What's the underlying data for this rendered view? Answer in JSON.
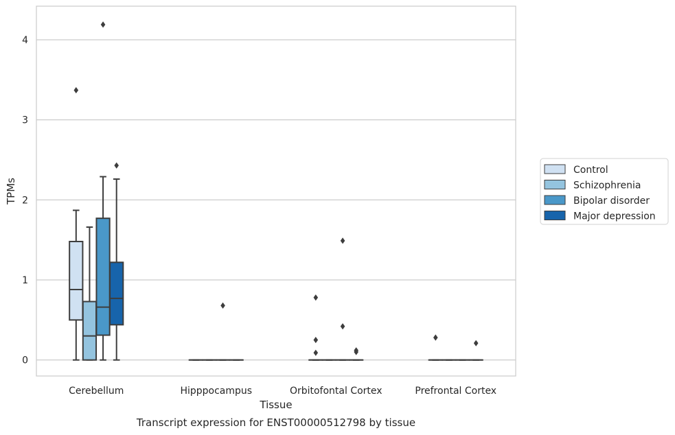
{
  "chart_data": {
    "type": "box",
    "title": "Transcript expression for ENST00000512798 by tissue",
    "xlabel": "Tissue",
    "ylabel": "TPMs",
    "ylim": [
      -0.2,
      4.42
    ],
    "yticks": [
      0,
      1,
      2,
      3,
      4
    ],
    "grid": "horizontal",
    "legend_position": "right",
    "categories": [
      "Cerebellum",
      "Hipppocampus",
      "Orbitofontal Cortex",
      "Prefrontal Cortex"
    ],
    "series": [
      {
        "name": "Control",
        "color": "#d0e1f2",
        "boxes": [
          {
            "whisker_low": 0,
            "q1": 0.5,
            "median": 0.88,
            "q3": 1.48,
            "whisker_high": 1.87,
            "outliers": [
              3.37
            ]
          },
          {
            "whisker_low": 0,
            "q1": 0,
            "median": 0,
            "q3": 0,
            "whisker_high": 0,
            "outliers": []
          },
          {
            "whisker_low": 0,
            "q1": 0,
            "median": 0,
            "q3": 0,
            "whisker_high": 0,
            "outliers": [
              0.78,
              0.25,
              0.09
            ]
          },
          {
            "whisker_low": 0,
            "q1": 0,
            "median": 0,
            "q3": 0,
            "whisker_high": 0,
            "outliers": [
              0.28
            ]
          }
        ]
      },
      {
        "name": "Schizophrenia",
        "color": "#94c4df",
        "boxes": [
          {
            "whisker_low": 0,
            "q1": 0,
            "median": 0.3,
            "q3": 0.73,
            "whisker_high": 1.66,
            "outliers": []
          },
          {
            "whisker_low": 0,
            "q1": 0,
            "median": 0,
            "q3": 0,
            "whisker_high": 0,
            "outliers": []
          },
          {
            "whisker_low": 0,
            "q1": 0,
            "median": 0,
            "q3": 0,
            "whisker_high": 0,
            "outliers": []
          },
          {
            "whisker_low": 0,
            "q1": 0,
            "median": 0,
            "q3": 0,
            "whisker_high": 0,
            "outliers": []
          }
        ]
      },
      {
        "name": "Bipolar disorder",
        "color": "#4a98c9",
        "boxes": [
          {
            "whisker_low": 0,
            "q1": 0.31,
            "median": 0.66,
            "q3": 1.77,
            "whisker_high": 2.29,
            "outliers": [
              4.19
            ]
          },
          {
            "whisker_low": 0,
            "q1": 0,
            "median": 0,
            "q3": 0,
            "whisker_high": 0,
            "outliers": [
              0.68
            ]
          },
          {
            "whisker_low": 0,
            "q1": 0,
            "median": 0,
            "q3": 0,
            "whisker_high": 0,
            "outliers": [
              1.49,
              0.42
            ]
          },
          {
            "whisker_low": 0,
            "q1": 0,
            "median": 0,
            "q3": 0,
            "whisker_high": 0,
            "outliers": []
          }
        ]
      },
      {
        "name": "Major depression",
        "color": "#1764ab",
        "boxes": [
          {
            "whisker_low": 0,
            "q1": 0.44,
            "median": 0.77,
            "q3": 1.22,
            "whisker_high": 2.26,
            "outliers": [
              2.43
            ]
          },
          {
            "whisker_low": 0,
            "q1": 0,
            "median": 0,
            "q3": 0,
            "whisker_high": 0,
            "outliers": []
          },
          {
            "whisker_low": 0,
            "q1": 0,
            "median": 0,
            "q3": 0,
            "whisker_high": 0,
            "outliers": [
              0.12,
              0.1
            ]
          },
          {
            "whisker_low": 0,
            "q1": 0,
            "median": 0,
            "q3": 0,
            "whisker_high": 0,
            "outliers": [
              0.21
            ]
          }
        ]
      }
    ]
  }
}
